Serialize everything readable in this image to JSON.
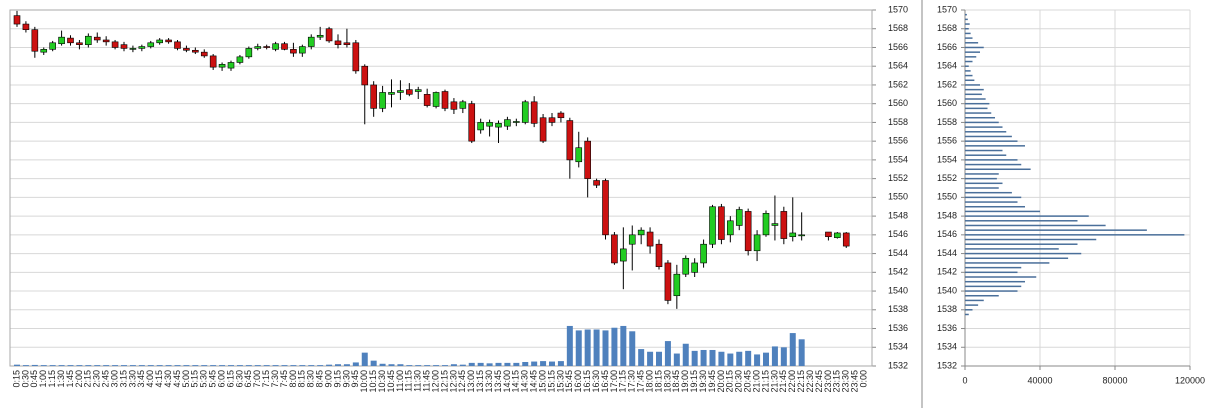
{
  "chart_data": [
    {
      "type": "candlestick",
      "categories": [
        "0:15",
        "0:30",
        "0:45",
        "1:00",
        "1:15",
        "1:30",
        "1:45",
        "2:00",
        "2:15",
        "2:30",
        "2:45",
        "3:00",
        "3:15",
        "3:30",
        "3:45",
        "4:00",
        "4:15",
        "4:30",
        "4:45",
        "5:00",
        "5:15",
        "5:30",
        "5:45",
        "6:00",
        "6:15",
        "6:30",
        "6:45",
        "7:00",
        "7:15",
        "7:30",
        "7:45",
        "8:00",
        "8:15",
        "8:30",
        "8:45",
        "9:00",
        "9:15",
        "9:30",
        "9:45",
        "10:00",
        "10:15",
        "10:30",
        "10:45",
        "11:00",
        "11:15",
        "11:30",
        "11:45",
        "12:00",
        "12:15",
        "12:30",
        "12:45",
        "13:00",
        "13:15",
        "13:30",
        "13:45",
        "14:00",
        "14:15",
        "14:30",
        "14:45",
        "15:00",
        "15:15",
        "15:30",
        "15:45",
        "16:00",
        "16:15",
        "16:30",
        "16:45",
        "17:00",
        "17:15",
        "17:30",
        "17:45",
        "18:00",
        "18:15",
        "18:30",
        "18:45",
        "19:00",
        "19:15",
        "19:30",
        "19:45",
        "20:00",
        "20:15",
        "20:30",
        "20:45",
        "21:00",
        "21:15",
        "21:30",
        "21:45",
        "22:00",
        "22:15",
        "22:30",
        "22:45",
        "23:00",
        "23:15",
        "23:30",
        "23:45",
        "0:00"
      ],
      "open": [
        1569.4,
        1568.5,
        1567.9,
        1565.5,
        1565.8,
        1566.4,
        1567.0,
        1566.5,
        1566.3,
        1567.1,
        1566.8,
        1566.6,
        1566.3,
        1565.8,
        1565.9,
        1566.1,
        1566.5,
        1566.8,
        1566.6,
        1565.9,
        1565.7,
        1565.5,
        1565.1,
        1563.9,
        1563.8,
        1564.4,
        1565.0,
        1565.9,
        1566.1,
        1565.8,
        1566.4,
        1565.8,
        1565.4,
        1566.1,
        1567.1,
        1568.0,
        1566.7,
        1566.5,
        1566.5,
        1564.0,
        1562.0,
        1559.5,
        1561.0,
        1561.2,
        1561.5,
        1561.3,
        1561.0,
        1559.7,
        1561.3,
        1560.2,
        1559.5,
        1560.0,
        1557.2,
        1557.6,
        1557.5,
        1557.6,
        1558.0,
        1558.0,
        1560.2,
        1558.5,
        1558.5,
        1559.0,
        1558.2,
        1553.8,
        1556.0,
        1551.8,
        1551.8,
        1546.0,
        1543.2,
        1545.0,
        1546.0,
        1546.3,
        1545.0,
        1543.0,
        1539.5,
        1541.8,
        1542.0,
        1543.0,
        1545.0,
        1549.0,
        1546.0,
        1547.0,
        1548.5,
        1544.3,
        1546.0,
        1547.0,
        1548.5,
        1545.8,
        1546.0,
        null,
        null,
        1546.3,
        1545.7,
        1546.2,
        null,
        null
      ],
      "high": [
        1569.9,
        1568.8,
        1568.2,
        1566.0,
        1566.7,
        1567.8,
        1567.3,
        1566.8,
        1567.5,
        1567.6,
        1567.2,
        1566.8,
        1566.6,
        1566.2,
        1566.3,
        1566.7,
        1567.0,
        1567.0,
        1566.8,
        1566.2,
        1566.0,
        1565.8,
        1565.3,
        1564.4,
        1564.6,
        1565.2,
        1566.1,
        1566.4,
        1566.3,
        1566.6,
        1566.6,
        1566.5,
        1566.3,
        1567.4,
        1568.2,
        1568.2,
        1567.4,
        1568.0,
        1566.8,
        1564.2,
        1562.4,
        1561.9,
        1562.6,
        1562.5,
        1562.2,
        1561.8,
        1561.6,
        1561.3,
        1561.5,
        1560.6,
        1560.4,
        1560.3,
        1558.4,
        1558.3,
        1558.2,
        1558.6,
        1558.4,
        1560.4,
        1560.8,
        1558.9,
        1559.0,
        1559.2,
        1558.5,
        1557.0,
        1556.4,
        1552.0,
        1552.0,
        1546.3,
        1546.8,
        1547.0,
        1546.8,
        1546.8,
        1545.5,
        1543.3,
        1542.8,
        1543.8,
        1543.5,
        1545.5,
        1549.2,
        1549.3,
        1548.0,
        1549.0,
        1548.8,
        1546.5,
        1548.6,
        1550.2,
        1549.0,
        1550.0,
        1548.4,
        null,
        null,
        1546.3,
        1546.3,
        1546.3,
        null,
        null
      ],
      "low": [
        1568.2,
        1567.6,
        1564.9,
        1565.2,
        1565.6,
        1566.2,
        1566.2,
        1565.8,
        1566.0,
        1566.5,
        1566.2,
        1565.8,
        1565.6,
        1565.5,
        1565.6,
        1565.9,
        1566.3,
        1566.4,
        1565.7,
        1565.5,
        1565.3,
        1564.9,
        1563.6,
        1563.5,
        1563.5,
        1564.2,
        1564.8,
        1565.7,
        1565.8,
        1565.6,
        1565.7,
        1565.0,
        1565.0,
        1565.8,
        1566.8,
        1566.5,
        1565.9,
        1566.0,
        1563.2,
        1557.8,
        1558.6,
        1559.1,
        1559.6,
        1560.4,
        1560.8,
        1560.5,
        1559.6,
        1559.5,
        1559.2,
        1558.9,
        1559.0,
        1555.8,
        1556.8,
        1556.5,
        1555.8,
        1557.2,
        1557.6,
        1557.8,
        1557.5,
        1555.8,
        1557.6,
        1558.0,
        1552.0,
        1553.2,
        1550.0,
        1551.0,
        1545.5,
        1542.8,
        1540.2,
        1542.2,
        1545.0,
        1544.0,
        1542.3,
        1538.6,
        1538.1,
        1541.5,
        1541.5,
        1542.5,
        1544.6,
        1545.0,
        1545.2,
        1546.5,
        1543.8,
        1543.2,
        1545.8,
        1545.4,
        1545.0,
        1545.3,
        1545.4,
        null,
        null,
        1545.4,
        1545.6,
        1544.6,
        null,
        null
      ],
      "close": [
        1568.5,
        1567.9,
        1565.6,
        1565.8,
        1566.5,
        1567.1,
        1566.5,
        1566.3,
        1567.2,
        1566.8,
        1566.6,
        1566.0,
        1565.9,
        1565.9,
        1566.1,
        1566.5,
        1566.8,
        1566.6,
        1565.9,
        1565.7,
        1565.5,
        1565.1,
        1563.9,
        1564.2,
        1564.4,
        1565.0,
        1565.9,
        1566.1,
        1566.0,
        1566.4,
        1565.8,
        1565.4,
        1566.1,
        1567.1,
        1567.3,
        1566.7,
        1566.3,
        1566.3,
        1563.5,
        1562.0,
        1559.5,
        1561.2,
        1561.2,
        1561.4,
        1561.0,
        1561.5,
        1559.8,
        1561.2,
        1559.5,
        1559.4,
        1560.2,
        1556.0,
        1558.0,
        1558.0,
        1557.9,
        1558.3,
        1558.1,
        1560.2,
        1557.9,
        1556.0,
        1558.0,
        1558.5,
        1554.0,
        1555.3,
        1552.0,
        1551.3,
        1546.0,
        1543.0,
        1544.5,
        1546.0,
        1546.5,
        1544.8,
        1542.6,
        1539.0,
        1541.8,
        1543.5,
        1543.0,
        1545.0,
        1549.0,
        1545.5,
        1547.5,
        1548.7,
        1544.3,
        1546.0,
        1548.3,
        1547.2,
        1545.6,
        1546.2,
        1546.0,
        null,
        null,
        1545.8,
        1546.2,
        1544.8,
        null,
        null
      ],
      "volume": [
        150,
        100,
        120,
        100,
        100,
        100,
        100,
        100,
        100,
        100,
        100,
        100,
        100,
        100,
        100,
        100,
        100,
        100,
        100,
        100,
        100,
        100,
        100,
        100,
        100,
        100,
        100,
        100,
        100,
        100,
        100,
        100,
        100,
        100,
        100,
        150,
        200,
        200,
        400,
        1500,
        600,
        250,
        200,
        200,
        100,
        100,
        100,
        100,
        100,
        200,
        150,
        350,
        350,
        300,
        350,
        350,
        350,
        450,
        500,
        550,
        500,
        550,
        4500,
        4000,
        4100,
        4100,
        4000,
        4300,
        4500,
        3900,
        1900,
        1600,
        1600,
        2800,
        1400,
        2500,
        1700,
        1800,
        1800,
        1600,
        1400,
        1600,
        1700,
        1300,
        1500,
        2200,
        2100,
        3700,
        3000,
        null,
        null,
        null,
        null,
        null,
        null,
        null
      ],
      "up_color": "#22cc22",
      "down_color": "#cc1111",
      "volume_color": "#4f81bd",
      "ylim": [
        1532,
        1570
      ],
      "vlim": [
        0,
        40000
      ],
      "yticks": [
        1532,
        1534,
        1536,
        1538,
        1540,
        1542,
        1544,
        1546,
        1548,
        1550,
        1552,
        1554,
        1556,
        1558,
        1560,
        1562,
        1564,
        1566,
        1568,
        1570
      ],
      "grid": true
    },
    {
      "type": "barh",
      "y": [
        1537.5,
        1538,
        1538.5,
        1539,
        1539.5,
        1540,
        1540.5,
        1541,
        1541.5,
        1542,
        1542.5,
        1543,
        1543.5,
        1544,
        1544.5,
        1545,
        1545.5,
        1546,
        1546.5,
        1547,
        1547.5,
        1548,
        1548.5,
        1549,
        1549.5,
        1550,
        1550.5,
        1551,
        1551.5,
        1552,
        1552.5,
        1553,
        1553.5,
        1554,
        1554.5,
        1555,
        1555.5,
        1556,
        1556.5,
        1557,
        1557.5,
        1558,
        1558.5,
        1559,
        1559.5,
        1560,
        1560.5,
        1561,
        1561.5,
        1562,
        1562.5,
        1563,
        1563.5,
        1564,
        1564.5,
        1565,
        1565.5,
        1566,
        1566.5,
        1567,
        1567.5,
        1568,
        1568.5,
        1569,
        1569.5
      ],
      "values": [
        2000,
        4000,
        7000,
        10000,
        18000,
        28000,
        30000,
        32000,
        38000,
        28000,
        30000,
        45000,
        55000,
        62000,
        50000,
        60000,
        70000,
        117000,
        97000,
        75000,
        60000,
        66000,
        40000,
        32000,
        28000,
        30000,
        25000,
        18000,
        20000,
        17000,
        18000,
        35000,
        30000,
        28000,
        22000,
        20000,
        32000,
        28000,
        25000,
        22000,
        20000,
        18000,
        16000,
        14000,
        12000,
        13000,
        11000,
        9000,
        10000,
        8000,
        5000,
        4000,
        3000,
        2000,
        4000,
        6000,
        8000,
        10000,
        7000,
        4000,
        3000,
        2000,
        2500,
        1500,
        1000
      ],
      "color": "#4a6f9a",
      "ylim": [
        1532,
        1570
      ],
      "yticks": [
        1532,
        1534,
        1536,
        1538,
        1540,
        1542,
        1544,
        1546,
        1548,
        1550,
        1552,
        1554,
        1556,
        1558,
        1560,
        1562,
        1564,
        1566,
        1568,
        1570
      ],
      "xlim": [
        0,
        120000
      ],
      "xticks": [
        0,
        40000,
        80000,
        120000
      ],
      "grid": true
    }
  ]
}
